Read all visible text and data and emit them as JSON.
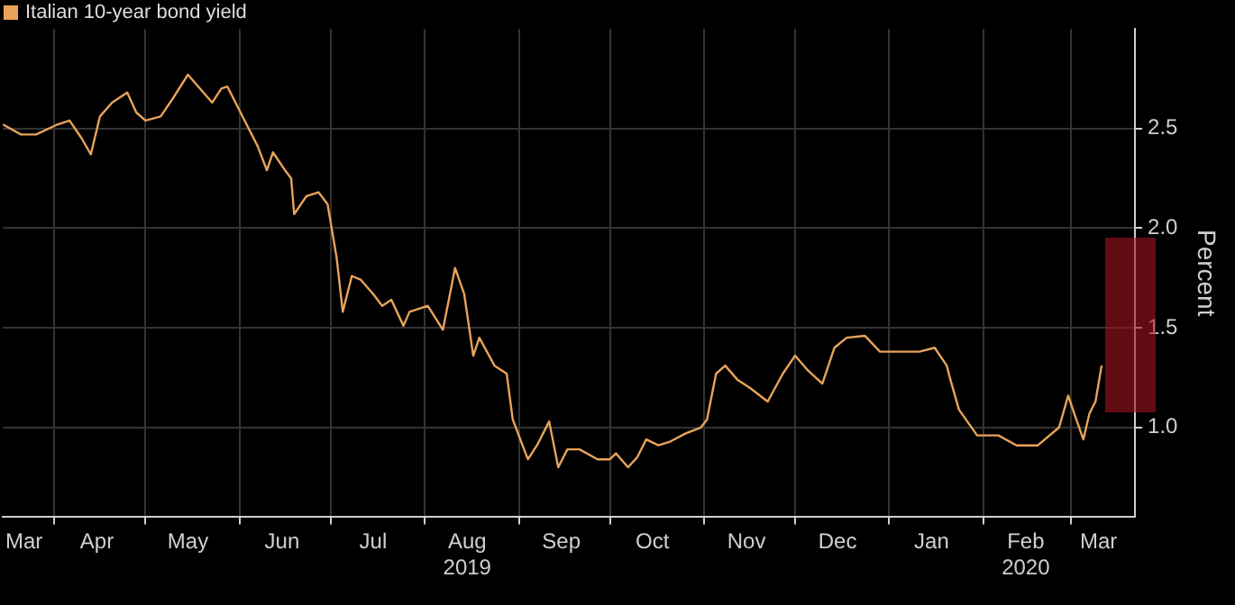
{
  "chart_data": {
    "type": "line",
    "legend": "top left",
    "grid": true,
    "marker": "none",
    "ylabel": "Percent",
    "xlim": [
      "2019-03-15",
      "2020-03-22"
    ],
    "ylim": [
      0.55,
      3.0
    ],
    "yticks": [
      {
        "value": 1,
        "label": "1.0"
      },
      {
        "value": 1.5,
        "label": "1.5"
      },
      {
        "value": 2,
        "label": "2.0"
      },
      {
        "value": 2.5,
        "label": "2.5"
      }
    ],
    "xticks": [
      {
        "value": "2019-03-22",
        "label": "Mar"
      },
      {
        "value": "2019-04-01",
        "label": null
      },
      {
        "value": "2019-04-15",
        "label": "Apr"
      },
      {
        "value": "2019-05-01",
        "label": null
      },
      {
        "value": "2019-05-15",
        "label": "May"
      },
      {
        "value": "2019-06-01",
        "label": null
      },
      {
        "value": "2019-06-15",
        "label": "Jun"
      },
      {
        "value": "2019-07-01",
        "label": null
      },
      {
        "value": "2019-07-15",
        "label": "Jul"
      },
      {
        "value": "2019-08-01",
        "label": null
      },
      {
        "value": "2019-08-15",
        "label": "Aug\n2019"
      },
      {
        "value": "2019-09-01",
        "label": null
      },
      {
        "value": "2019-09-15",
        "label": "Sep"
      },
      {
        "value": "2019-10-01",
        "label": null
      },
      {
        "value": "2019-10-15",
        "label": "Oct"
      },
      {
        "value": "2019-11-01",
        "label": null
      },
      {
        "value": "2019-11-15",
        "label": "Nov"
      },
      {
        "value": "2019-12-01",
        "label": null
      },
      {
        "value": "2019-12-15",
        "label": "Dec"
      },
      {
        "value": "2020-01-01",
        "label": null
      },
      {
        "value": "2020-01-15",
        "label": "Jan"
      },
      {
        "value": "2020-02-01",
        "label": null
      },
      {
        "value": "2020-02-15",
        "label": "Feb\n2020"
      },
      {
        "value": "2020-03-01",
        "label": null
      },
      {
        "value": "2020-03-10",
        "label": "Mar"
      }
    ],
    "series": [
      {
        "name": "Italian 10-year bond yield",
        "color": "#e8a35a",
        "x": [
          "2019-03-15",
          "2019-03-21",
          "2019-03-26",
          "2019-04-02",
          "2019-04-06",
          "2019-04-10",
          "2019-04-13",
          "2019-04-16",
          "2019-04-20",
          "2019-04-25",
          "2019-04-28",
          "2019-05-01",
          "2019-05-06",
          "2019-05-10",
          "2019-05-15",
          "2019-05-19",
          "2019-05-23",
          "2019-05-26",
          "2019-05-28",
          "2019-06-01",
          "2019-06-04",
          "2019-06-07",
          "2019-06-10",
          "2019-06-12",
          "2019-06-16",
          "2019-06-18",
          "2019-06-19",
          "2019-06-23",
          "2019-06-27",
          "2019-06-30",
          "2019-07-03",
          "2019-07-05",
          "2019-07-08",
          "2019-07-11",
          "2019-07-15",
          "2019-07-18",
          "2019-07-21",
          "2019-07-25",
          "2019-07-27",
          "2019-08-02",
          "2019-08-07",
          "2019-08-11",
          "2019-08-14",
          "2019-08-17",
          "2019-08-19",
          "2019-08-24",
          "2019-08-28",
          "2019-08-30",
          "2019-09-01",
          "2019-09-04",
          "2019-09-07",
          "2019-09-11",
          "2019-09-14",
          "2019-09-17",
          "2019-09-21",
          "2019-09-27",
          "2019-10-01",
          "2019-10-03",
          "2019-10-07",
          "2019-10-10",
          "2019-10-13",
          "2019-10-17",
          "2019-10-21",
          "2019-10-26",
          "2019-10-31",
          "2019-11-02",
          "2019-11-05",
          "2019-11-08",
          "2019-11-12",
          "2019-11-16",
          "2019-11-22",
          "2019-11-27",
          "2019-12-01",
          "2019-12-05",
          "2019-12-10",
          "2019-12-14",
          "2019-12-18",
          "2019-12-24",
          "2019-12-29",
          "2020-01-05",
          "2020-01-11",
          "2020-01-16",
          "2020-01-20",
          "2020-01-21",
          "2020-01-24",
          "2020-01-30",
          "2020-02-06",
          "2020-02-12",
          "2020-02-19",
          "2020-02-26",
          "2020-02-29",
          "2020-03-02",
          "2020-03-05",
          "2020-03-07",
          "2020-03-09",
          "2020-03-11"
        ],
        "values": [
          2.52,
          2.47,
          2.47,
          2.52,
          2.54,
          2.45,
          2.37,
          2.56,
          2.63,
          2.68,
          2.58,
          2.54,
          2.56,
          2.65,
          2.77,
          2.7,
          2.63,
          2.7,
          2.71,
          2.59,
          2.5,
          2.41,
          2.29,
          2.38,
          2.29,
          2.25,
          2.07,
          2.16,
          2.18,
          2.12,
          1.85,
          1.58,
          1.76,
          1.74,
          1.67,
          1.61,
          1.64,
          1.51,
          1.58,
          1.61,
          1.49,
          1.8,
          1.67,
          1.36,
          1.45,
          1.31,
          1.27,
          1.04,
          0.96,
          0.84,
          0.91,
          1.03,
          0.8,
          0.89,
          0.89,
          0.84,
          0.84,
          0.87,
          0.8,
          0.85,
          0.94,
          0.91,
          0.93,
          0.97,
          1.0,
          1.04,
          1.27,
          1.31,
          1.24,
          1.2,
          1.13,
          1.27,
          1.36,
          1.29,
          1.22,
          1.4,
          1.45,
          1.46,
          1.38,
          1.38,
          1.38,
          1.4,
          1.31,
          1.25,
          1.09,
          0.96,
          0.96,
          0.91,
          0.91,
          1.0,
          1.16,
          1.07,
          0.94,
          1.07,
          1.13,
          1.31
        ]
      }
    ]
  }
}
